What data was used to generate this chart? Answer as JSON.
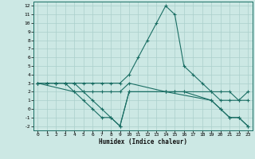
{
  "xlabel": "Humidex (Indice chaleur)",
  "bg_color": "#cce8e4",
  "grid_color": "#aacfcb",
  "line_color": "#1a6e64",
  "xlim": [
    -0.5,
    23.5
  ],
  "ylim": [
    -2.5,
    12.5
  ],
  "xticks": [
    0,
    1,
    2,
    3,
    4,
    5,
    6,
    7,
    8,
    9,
    10,
    11,
    12,
    13,
    14,
    15,
    16,
    17,
    18,
    19,
    20,
    21,
    22,
    23
  ],
  "yticks": [
    -2,
    -1,
    0,
    1,
    2,
    3,
    4,
    5,
    6,
    7,
    8,
    9,
    10,
    11,
    12
  ],
  "lines": [
    {
      "x": [
        0,
        1,
        2,
        3,
        4,
        5,
        6,
        7,
        8,
        9,
        10,
        11,
        12,
        13,
        14,
        15,
        16,
        17,
        18,
        19,
        20,
        21,
        22,
        23
      ],
      "y": [
        3,
        3,
        3,
        3,
        3,
        3,
        3,
        3,
        3,
        3,
        4,
        6,
        8,
        10,
        12,
        11,
        5,
        4,
        3,
        2,
        2,
        2,
        1,
        2
      ]
    },
    {
      "x": [
        0,
        1,
        2,
        3,
        4,
        5,
        6,
        7,
        8,
        9,
        10,
        14,
        15,
        16,
        19,
        20,
        21,
        22,
        23
      ],
      "y": [
        3,
        3,
        3,
        3,
        2,
        2,
        1,
        0,
        -1,
        -2,
        2,
        2,
        2,
        2,
        1,
        0,
        -1,
        -1,
        -2
      ]
    },
    {
      "x": [
        0,
        1,
        2,
        3,
        4,
        5,
        6,
        7,
        8,
        9,
        10,
        14,
        15,
        16,
        19,
        20,
        21,
        22,
        23
      ],
      "y": [
        3,
        3,
        3,
        3,
        3,
        2,
        2,
        2,
        2,
        2,
        3,
        2,
        2,
        2,
        2,
        1,
        1,
        1,
        1
      ]
    },
    {
      "x": [
        0,
        4,
        5,
        6,
        7,
        8,
        9,
        10,
        14,
        19,
        20,
        21,
        22,
        23
      ],
      "y": [
        3,
        2,
        1,
        0,
        -1,
        -1,
        -2,
        2,
        2,
        1,
        0,
        -1,
        -1,
        -2
      ]
    }
  ]
}
